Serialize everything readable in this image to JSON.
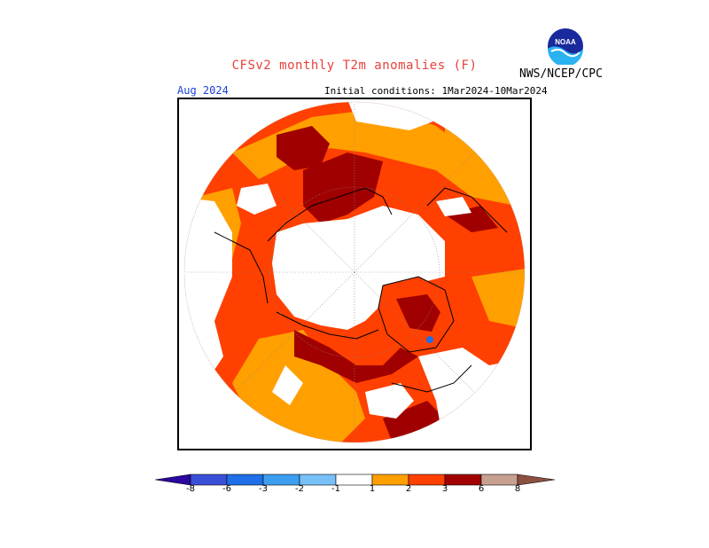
{
  "header": {
    "title": "CFSv2 monthly T2m anomalies (F)",
    "valid_month": "Aug 2024",
    "initial_conditions": "Initial conditions: 1Mar2024-10Mar2024",
    "agency": "NWS/NCEP/CPC",
    "logo_text": "NOAA"
  },
  "map": {
    "projection": "north-polar-stereographic",
    "colors": {
      "anom_1_2": "#ffa000",
      "anom_2_3": "#ff4000",
      "anom_3_6": "#a00000",
      "neutral": "#ffffff",
      "coast": "#000000",
      "blue_spot": "#1e6fe8"
    }
  },
  "colorbar": {
    "labels": [
      "-8",
      "-6",
      "-3",
      "-2",
      "-1",
      "1",
      "2",
      "3",
      "6",
      "8"
    ],
    "colors": [
      "#2c07a0",
      "#3a4fd8",
      "#1e6fe8",
      "#3c9ef0",
      "#78c0f8",
      "#ffffff",
      "#ffa000",
      "#ff4000",
      "#a00000",
      "#c8a090",
      "#8b5040"
    ]
  }
}
